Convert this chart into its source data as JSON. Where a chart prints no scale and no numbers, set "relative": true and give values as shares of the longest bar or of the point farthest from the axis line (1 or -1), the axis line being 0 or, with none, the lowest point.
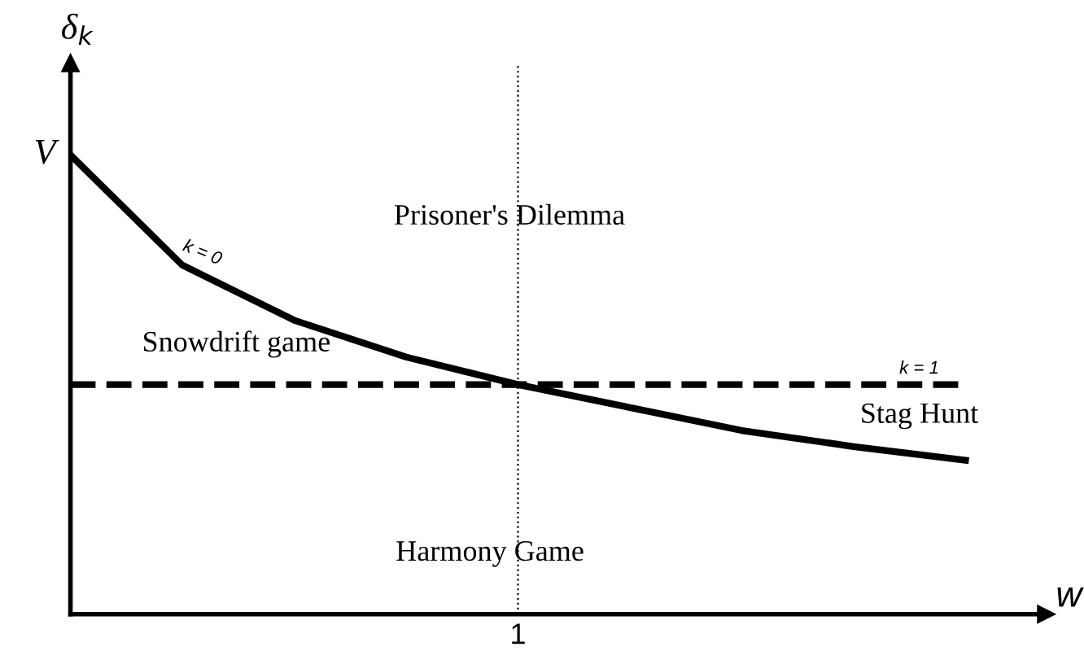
{
  "chart_data": {
    "type": "line",
    "relative": true,
    "ylabel": "δ$_{k}$",
    "xlabel": "w",
    "categories": [
      null,
      null,
      null,
      null,
      null,
      null,
      null,
      null,
      null
    ],
    "grid": false,
    "legend": false,
    "marker": "none",
    "series": [
      {
        "color": "#000000",
        "line_style": "solid",
        "values": [
          1.0,
          0.76,
          0.64,
          0.56,
          0.5,
          0.45,
          0.4,
          0.365,
          0.335
        ]
      },
      {
        "color": "#000000",
        "line_style": "dashed",
        "values": [
          0.5,
          0.5,
          0.5,
          0.5,
          0.5,
          0.5,
          0.5,
          0.5,
          0.5
        ]
      }
    ],
    "annotations": [
      "1",
      "V",
      "k = 0",
      "k = 1",
      "Prisoner's Dilemma",
      "Snowdrift game",
      "Stag Hunt",
      "Harmony Game"
    ]
  }
}
